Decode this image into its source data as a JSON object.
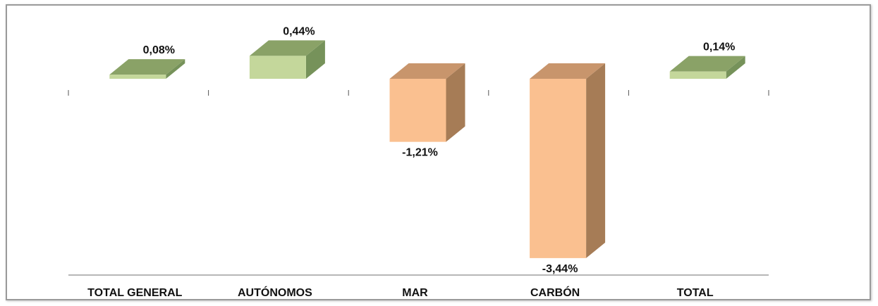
{
  "chart_data": {
    "type": "bar",
    "categories": [
      "TOTAL GENERAL",
      "AUTÓNOMOS",
      "MAR",
      "CARBÓN",
      "TOTAL"
    ],
    "values": [
      0.08,
      0.44,
      -1.21,
      -3.44,
      0.14
    ],
    "data_labels": [
      "0,08%",
      "0,44%",
      "-1,21%",
      "-3,44%",
      "0,14%"
    ],
    "title": "",
    "xlabel": "",
    "ylabel": "",
    "ylim": [
      -3.44,
      0.44
    ],
    "grid": false,
    "legend": "none",
    "style": "3d-column",
    "colors": {
      "positive_front": "#c4d79b",
      "positive_top": "#8aa267",
      "positive_side": "#76925a",
      "negative_front": "#fac090",
      "negative_top": "#c8956c",
      "negative_side": "#a67c56"
    }
  }
}
